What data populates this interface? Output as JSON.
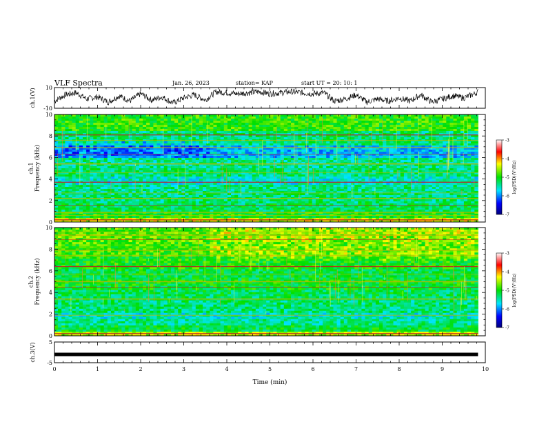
{
  "header": {
    "title": "VLF Spectra",
    "date": "Jan. 26, 2023",
    "station": "station= KAP",
    "start": "start  UT =   20: 10: 1"
  },
  "chart_data": [
    {
      "type": "line",
      "title": "",
      "ylabel": "ch.1(V)",
      "xlim": [
        0,
        10
      ],
      "ylim": [
        -10,
        10
      ],
      "yticks": [
        "10",
        "-10"
      ],
      "description_series": "ch.1 waveform amplitude over time",
      "series": [
        {
          "x": [
            0,
            0.25,
            0.5,
            0.75,
            1.0,
            1.25,
            1.5,
            1.75,
            2.0,
            2.25,
            2.5,
            2.75,
            3.0,
            3.25,
            3.5,
            3.75,
            4.0,
            4.25,
            4.5,
            4.75,
            5.0,
            5.25,
            5.5,
            5.75,
            6.0,
            6.25,
            6.5,
            6.75,
            7.0,
            7.25,
            7.5,
            7.75,
            8.0,
            8.25,
            8.5,
            8.75,
            9.0,
            9.25,
            9.5,
            9.75,
            9.83
          ],
          "y": [
            -3,
            3,
            5,
            -1,
            1,
            -4,
            2,
            -3,
            4,
            -2,
            1,
            -5,
            0,
            3,
            -2,
            6,
            5,
            4,
            5,
            6,
            4,
            5,
            6,
            5,
            4,
            5,
            -3,
            -1,
            3,
            -4,
            -1,
            -3,
            0,
            -3,
            3,
            -4,
            -1,
            2,
            0,
            4,
            6
          ]
        }
      ]
    },
    {
      "type": "heatmap",
      "ylabel": "ch.1\nFrequency (kHz)",
      "xlim": [
        0,
        10
      ],
      "ylim": [
        0,
        10
      ],
      "yticks": [
        "0",
        "2",
        "4",
        "6",
        "8",
        "10"
      ],
      "colorbar": {
        "label": "log(PSD)(V²/Hz)",
        "range": [
          -7,
          -3
        ],
        "ticks": [
          "-3",
          "-4",
          "-5",
          "-6",
          "-7"
        ]
      }
    },
    {
      "type": "heatmap",
      "ylabel": "ch.2\nFrequency (kHz)",
      "xlim": [
        0,
        10
      ],
      "ylim": [
        0,
        10
      ],
      "yticks": [
        "0",
        "2",
        "4",
        "6",
        "8",
        "10"
      ],
      "colorbar": {
        "label": "log(PSD)(V²/Hz)",
        "range": [
          -7,
          -3
        ],
        "ticks": [
          "-3",
          "-4",
          "-5",
          "-6",
          "-7"
        ]
      }
    },
    {
      "type": "line",
      "ylabel": "ch.3(V)",
      "xlim": [
        0,
        10
      ],
      "ylim": [
        -5,
        5
      ],
      "yticks": [
        "5",
        "-5"
      ],
      "series": [
        {
          "x": [
            0,
            9.83
          ],
          "y": [
            -1,
            -1
          ]
        }
      ]
    }
  ],
  "xaxis": {
    "label": "Time (min)",
    "ticks": [
      "0",
      "1",
      "2",
      "3",
      "4",
      "5",
      "6",
      "7",
      "8",
      "9",
      "10"
    ]
  }
}
